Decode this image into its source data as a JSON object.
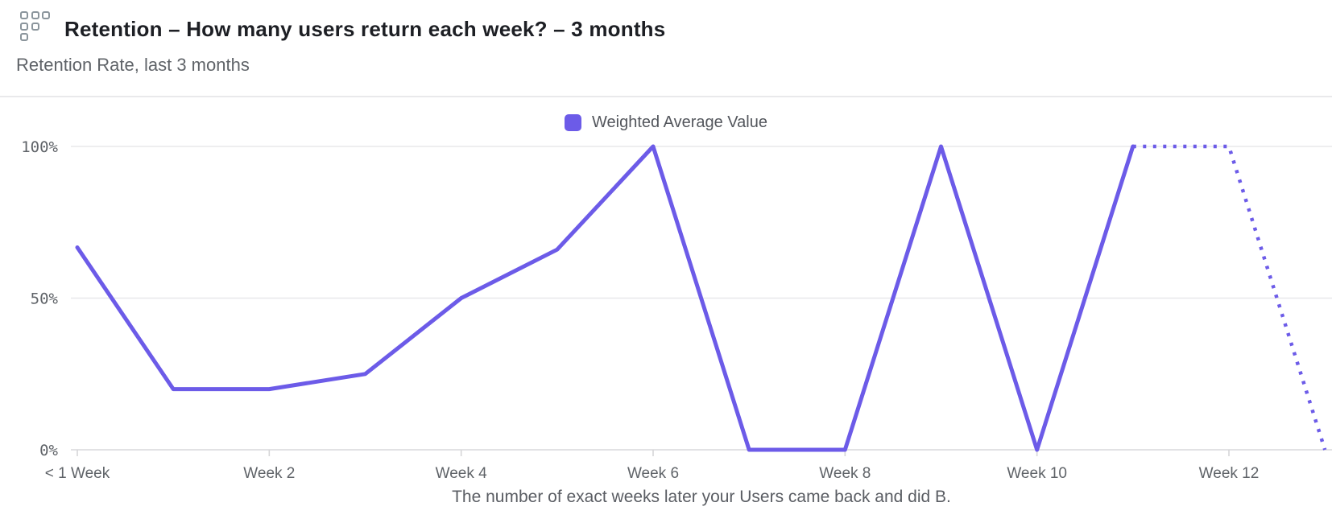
{
  "header": {
    "title": "Retention – How many users return each week? – 3 months",
    "subtitle": "Retention Rate, last 3 months",
    "icon": "retention-grid-icon"
  },
  "colors": {
    "accent": "#6C5BE8",
    "grid": "#e8e8ea",
    "text_gray": "#5f6368",
    "title": "#1d1f24",
    "icon_gray": "#8b959c"
  },
  "chart_data": {
    "type": "line",
    "title": "Retention Rate, last 3 months",
    "xlabel": "The number of exact weeks later your Users came back and did B.",
    "ylabel": "",
    "ylim": [
      0,
      100
    ],
    "grid": "horizontal",
    "legend_position": "top-center",
    "y_tick_labels": [
      "0%",
      "50%",
      "100%"
    ],
    "y_tick_values": [
      0,
      50,
      100
    ],
    "x_tick_labels": [
      "< 1 Week",
      "Week 2",
      "Week 4",
      "Week 6",
      "Week 8",
      "Week 10",
      "Week 12"
    ],
    "x_tick_weeks": [
      0,
      2,
      4,
      6,
      8,
      10,
      12
    ],
    "x_unit": "week",
    "x_range_weeks": [
      0,
      13
    ],
    "series": [
      {
        "name": "Weighted Average Value",
        "color": "#6C5BE8",
        "values": [
          66.7,
          20,
          20,
          25,
          50,
          66,
          100,
          0,
          0,
          100,
          0,
          100,
          100,
          0
        ],
        "dotted_from_index": 11,
        "dotted_note": "trailing segment rendered dotted (incomplete period)"
      }
    ]
  }
}
